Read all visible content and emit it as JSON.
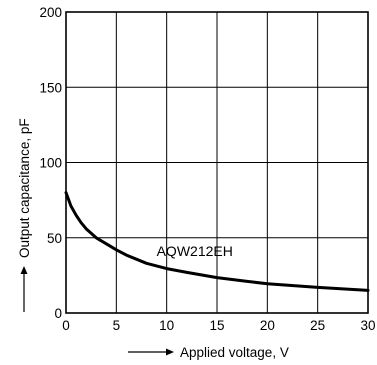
{
  "chart_data": {
    "type": "line",
    "xlabel": "Applied voltage, V",
    "ylabel": "Output capacitance, pF",
    "xlim": [
      0,
      30
    ],
    "ylim": [
      0,
      200
    ],
    "xticks": [
      0,
      5,
      10,
      15,
      20,
      25,
      30
    ],
    "yticks": [
      0,
      50,
      100,
      150,
      200
    ],
    "grid": true,
    "line_color": "#000000",
    "series": [
      {
        "name": "AQW212EH",
        "x": [
          0,
          0.5,
          1,
          1.5,
          2,
          3,
          4,
          5,
          6,
          8,
          10,
          12,
          15,
          18,
          20,
          25,
          30
        ],
        "y": [
          80,
          71,
          65,
          60,
          56,
          50,
          46,
          42,
          38.5,
          33,
          29.5,
          27,
          23.5,
          21,
          19.5,
          17,
          15
        ]
      }
    ],
    "annotations": [
      {
        "text": "AQW212EH",
        "x": 9,
        "y": 38
      }
    ]
  }
}
